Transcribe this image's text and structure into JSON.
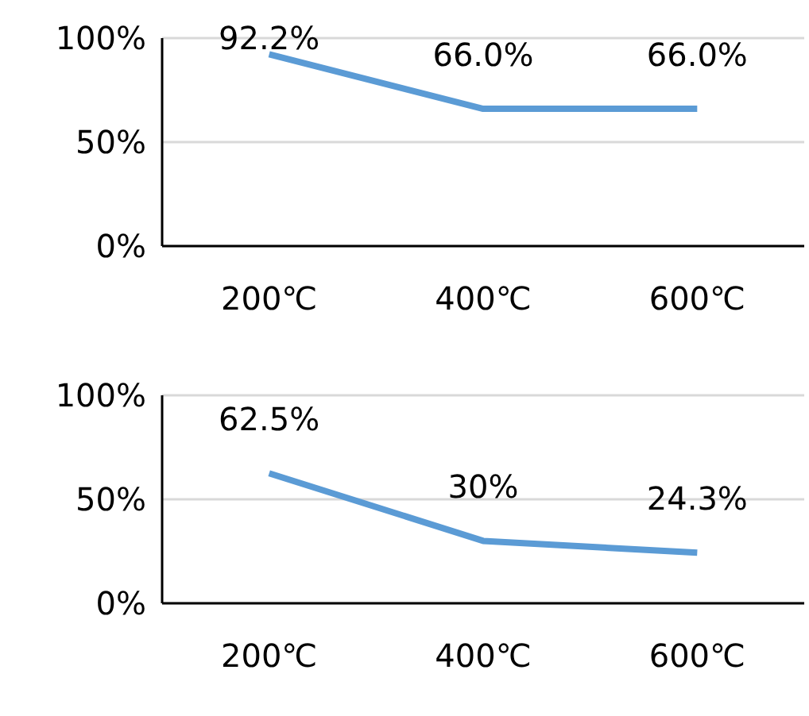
{
  "chart_data": [
    {
      "type": "line",
      "categories": [
        "200℃",
        "400℃",
        "600℃"
      ],
      "series": [
        {
          "color": "#5b9bd5",
          "values": [
            92.2,
            66.0,
            66.0
          ],
          "value_labels": [
            "92.2%",
            "66.0%",
            "66.0%"
          ]
        }
      ],
      "ylim": [
        0,
        100
      ],
      "yticks": [
        {
          "value": 0,
          "label": "0%"
        },
        {
          "value": 50,
          "label": "50%"
        },
        {
          "value": 100,
          "label": "100%"
        }
      ],
      "grid": "y",
      "marker": "none",
      "legend": false
    },
    {
      "type": "line",
      "categories": [
        "200℃",
        "400℃",
        "600℃"
      ],
      "series": [
        {
          "color": "#5b9bd5",
          "values": [
            62.5,
            30,
            24.3
          ],
          "value_labels": [
            "62.5%",
            "30%",
            "24.3%"
          ]
        }
      ],
      "ylim": [
        0,
        100
      ],
      "yticks": [
        {
          "value": 0,
          "label": "0%"
        },
        {
          "value": 50,
          "label": "50%"
        },
        {
          "value": 100,
          "label": "100%"
        }
      ],
      "grid": "y",
      "marker": "none",
      "legend": false
    }
  ]
}
